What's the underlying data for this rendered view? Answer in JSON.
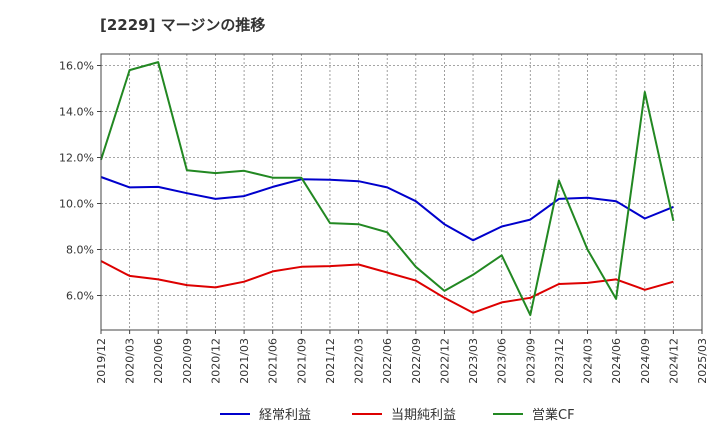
{
  "chart_data": {
    "type": "line",
    "title": "[2229]  マージンの推移",
    "x": [
      "2019/12",
      "2020/03",
      "2020/06",
      "2020/09",
      "2020/12",
      "2021/03",
      "2021/06",
      "2021/09",
      "2021/12",
      "2022/03",
      "2022/06",
      "2022/09",
      "2022/12",
      "2023/03",
      "2023/06",
      "2023/09",
      "2023/12",
      "2024/03",
      "2024/06",
      "2024/09",
      "2024/12"
    ],
    "x_ticks": [
      "2019/12",
      "2020/03",
      "2020/06",
      "2020/09",
      "2020/12",
      "2021/03",
      "2021/06",
      "2021/09",
      "2021/12",
      "2022/03",
      "2022/06",
      "2022/09",
      "2022/12",
      "2023/03",
      "2023/06",
      "2023/09",
      "2023/12",
      "2024/03",
      "2024/06",
      "2024/09",
      "2024/12",
      "2025/03"
    ],
    "y_ticks": [
      6.0,
      8.0,
      10.0,
      12.0,
      14.0,
      16.0
    ],
    "y_tick_labels": [
      "6.0%",
      "8.0%",
      "10.0%",
      "12.0%",
      "14.0%",
      "16.0%"
    ],
    "ylim": [
      4.5,
      16.5
    ],
    "grid": true,
    "legend_position": "bottom",
    "series": [
      {
        "name": "経常利益",
        "color": "#0000cc",
        "values": [
          11.15,
          10.7,
          10.72,
          10.45,
          10.2,
          10.32,
          10.72,
          11.05,
          11.03,
          10.97,
          10.7,
          10.1,
          9.1,
          8.4,
          9.0,
          9.3,
          10.2,
          10.25,
          10.1,
          9.35,
          9.85
        ]
      },
      {
        "name": "当期純利益",
        "color": "#dd0000",
        "values": [
          7.5,
          6.85,
          6.7,
          6.45,
          6.35,
          6.6,
          7.05,
          7.25,
          7.28,
          7.35,
          7.0,
          6.65,
          5.9,
          5.25,
          5.7,
          5.9,
          6.5,
          6.55,
          6.7,
          6.25,
          6.6
        ]
      },
      {
        "name": "営業CF",
        "color": "#228822",
        "values": [
          11.9,
          15.8,
          16.15,
          11.45,
          11.32,
          11.42,
          11.12,
          11.12,
          9.15,
          9.1,
          8.75,
          7.25,
          6.2,
          6.9,
          7.75,
          5.15,
          11.0,
          8.0,
          5.85,
          14.85,
          9.25
        ]
      }
    ]
  }
}
